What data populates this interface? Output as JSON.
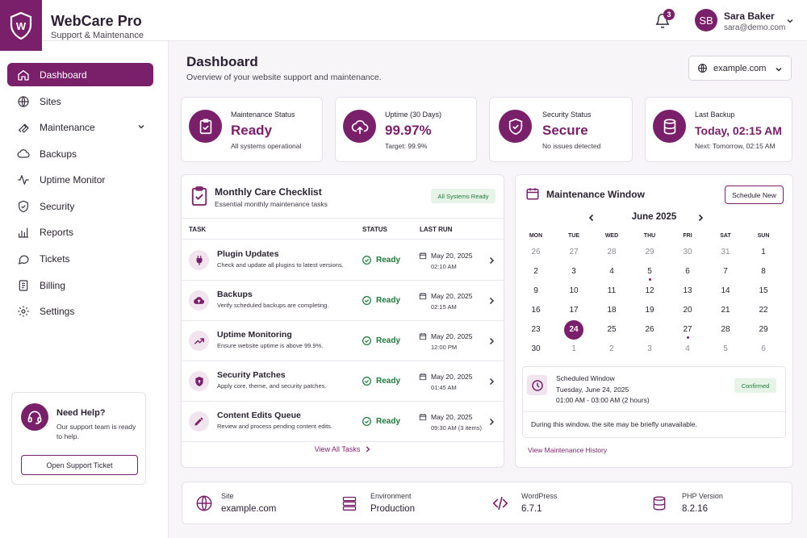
{
  "brand": {
    "title": "WebCare Pro",
    "subtitle": "Support & Maintenance",
    "logo_letter": "W"
  },
  "header": {
    "notifications_count": "3",
    "user": {
      "initials": "SB",
      "name": "Sara Baker",
      "email": "sara@demo.com"
    }
  },
  "sidebar": {
    "items": [
      {
        "label": "Dashboard",
        "icon": "home-icon",
        "active": true
      },
      {
        "label": "Sites",
        "icon": "globe-icon"
      },
      {
        "label": "Maintenance",
        "icon": "wrench-icon",
        "expandable": true
      },
      {
        "label": "Backups",
        "icon": "cloud-icon"
      },
      {
        "label": "Uptime Monitor",
        "icon": "pulse-icon"
      },
      {
        "label": "Security",
        "icon": "shield-icon"
      },
      {
        "label": "Reports",
        "icon": "bar-chart-icon"
      },
      {
        "label": "Tickets",
        "icon": "chat-icon"
      },
      {
        "label": "Billing",
        "icon": "document-icon"
      },
      {
        "label": "Settings",
        "icon": "gear-icon"
      }
    ],
    "help": {
      "title": "Need Help?",
      "text": "Our support team is ready to help.",
      "button": "Open Support Ticket"
    }
  },
  "page": {
    "title": "Dashboard",
    "subtitle": "Overview of your website support and maintenance.",
    "site_select": "example.com"
  },
  "stats": [
    {
      "label": "Maintenance Status",
      "value": "Ready",
      "note": "All systems operational",
      "icon": "clipboard-check-icon"
    },
    {
      "label": "Uptime (30 Days)",
      "value": "99.97%",
      "note": "Target: 99.9%",
      "icon": "cloud-upload-icon"
    },
    {
      "label": "Security Status",
      "value": "Secure",
      "note": "No issues detected",
      "icon": "shield-check-icon"
    },
    {
      "label": "Last Backup",
      "value": "Today, 02:15 AM",
      "note": "Next: Tomorrow, 02:15 AM",
      "icon": "database-icon"
    }
  ],
  "checklist": {
    "title": "Monthly Care Checklist",
    "subtitle": "Essential monthly maintenance tasks",
    "badge": "All Systems Ready",
    "columns": {
      "task": "TASK",
      "status": "STATUS",
      "last_run": "LAST RUN"
    },
    "rows": [
      {
        "title": "Plugin Updates",
        "desc": "Check and update all plugins to latest versions.",
        "status": "Ready",
        "date": "May 20, 2025",
        "time": "02:10 AM",
        "icon": "plug-icon"
      },
      {
        "title": "Backups",
        "desc": "Verify scheduled backups are completing.",
        "status": "Ready",
        "date": "May 20, 2025",
        "time": "02:15 AM",
        "icon": "cloud-icon"
      },
      {
        "title": "Uptime Monitoring",
        "desc": "Ensure website uptime is above 99.9%.",
        "status": "Ready",
        "date": "May 20, 2025",
        "time": "12:00 PM",
        "icon": "trend-icon"
      },
      {
        "title": "Security Patches",
        "desc": "Apply core, theme, and security patches.",
        "status": "Ready",
        "date": "May 20, 2025",
        "time": "01:45 AM",
        "icon": "shield-icon"
      },
      {
        "title": "Content Edits Queue",
        "desc": "Review and process pending content edits.",
        "status": "Ready",
        "date": "May 20, 2025",
        "time": "09:30 AM (3 items)",
        "icon": "pencil-icon"
      }
    ],
    "footer": "View All Tasks"
  },
  "maintenance_window": {
    "title": "Maintenance Window",
    "button": "Schedule New",
    "month": "June 2025",
    "weekdays": [
      "MON",
      "TUE",
      "WED",
      "THU",
      "FRI",
      "SAT",
      "SUN"
    ],
    "weeks": [
      [
        "26",
        "27",
        "28",
        "29",
        "30",
        "31",
        "1"
      ],
      [
        "2",
        "3",
        "4",
        "5",
        "6",
        "7",
        "8"
      ],
      [
        "9",
        "10",
        "11",
        "12",
        "13",
        "14",
        "15"
      ],
      [
        "16",
        "17",
        "18",
        "19",
        "20",
        "21",
        "22"
      ],
      [
        "23",
        "24",
        "25",
        "26",
        "27",
        "28",
        "29"
      ],
      [
        "30",
        "1",
        "2",
        "3",
        "4",
        "5",
        "6"
      ]
    ],
    "selected_day": "24",
    "scheduled": {
      "title": "Scheduled Window",
      "date": "Tuesday, June 24, 2025",
      "time": "01:00 AM - 03:00 AM (2 hours)",
      "badge": "Confirmed",
      "note": "During this window, the site may be briefly unavailable."
    },
    "history_link": "View Maintenance History"
  },
  "info_bar": [
    {
      "label": "Site",
      "value": "example.com",
      "icon": "globe-icon"
    },
    {
      "label": "Environment",
      "value": "Production",
      "icon": "server-icon"
    },
    {
      "label": "WordPress",
      "value": "6.7.1",
      "icon": "code-icon"
    },
    {
      "label": "PHP Version",
      "value": "8.2.16",
      "icon": "database-icon"
    }
  ],
  "colors": {
    "brand": "#7a1f6a",
    "success": "#1d7a3a",
    "background": "#f7f5f8"
  }
}
